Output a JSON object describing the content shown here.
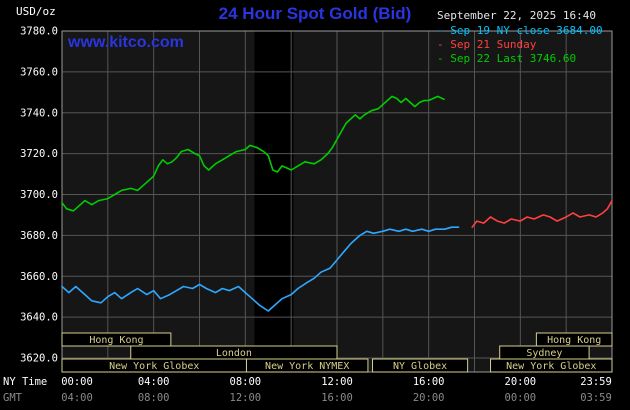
{
  "header": {
    "units_label": "USD/oz",
    "title": "24 Hour Spot Gold (Bid)",
    "datetime": "September 22, 2025 16:40",
    "watermark": "www.kitco.com",
    "accent_blue": "#2a35e0"
  },
  "legend": {
    "dash": "- ",
    "items": [
      {
        "label": "Sep 19 NY close 3684.00",
        "color": "#00c3ff"
      },
      {
        "label": "Sep 21 Sunday",
        "color": "#ff4040"
      },
      {
        "label": "Sep 22 Last 3746.60",
        "color": "#00cc00"
      }
    ]
  },
  "chart_data": {
    "type": "line",
    "title": "24 Hour Spot Gold (Bid)",
    "ylabel": "USD/oz",
    "xlabel": "NY Time / GMT",
    "ylim": [
      3620,
      3780
    ],
    "xlim": [
      0,
      24
    ],
    "grid": true,
    "legend_position": "top-right",
    "y_ticks": [
      {
        "value": 3780,
        "label": "3780.0"
      },
      {
        "value": 3760,
        "label": "3760.0"
      },
      {
        "value": 3740,
        "label": "3740.0"
      },
      {
        "value": 3720,
        "label": "3720.0"
      },
      {
        "value": 3700,
        "label": "3700.0"
      },
      {
        "value": 3680,
        "label": "3680.0"
      },
      {
        "value": 3660,
        "label": "3660.0"
      },
      {
        "value": 3640,
        "label": "3640.0"
      },
      {
        "value": 3620,
        "label": "3620.0"
      }
    ],
    "x_ticks": [
      {
        "hour": 0,
        "ny": "00:00",
        "gmt": "04:00"
      },
      {
        "hour": 4,
        "ny": "04:00",
        "gmt": "08:00"
      },
      {
        "hour": 8,
        "ny": "08:00",
        "gmt": "12:00"
      },
      {
        "hour": 12,
        "ny": "12:00",
        "gmt": "16:00"
      },
      {
        "hour": 16,
        "ny": "16:00",
        "gmt": "20:00"
      },
      {
        "hour": 20,
        "ny": "20:00",
        "gmt": "00:00"
      },
      {
        "hour": 24,
        "ny": "23:59",
        "gmt": "03:59"
      }
    ],
    "x_axis": {
      "ny_label": "NY Time",
      "gmt_label": "GMT"
    },
    "series": [
      {
        "name": "Sep 19 NY close 3684.00",
        "color": "#2ea8ff",
        "points": [
          [
            0,
            3655
          ],
          [
            0.3,
            3652
          ],
          [
            0.6,
            3655
          ],
          [
            1,
            3651
          ],
          [
            1.3,
            3648
          ],
          [
            1.7,
            3647
          ],
          [
            2,
            3650
          ],
          [
            2.3,
            3652
          ],
          [
            2.6,
            3649
          ],
          [
            3,
            3652
          ],
          [
            3.3,
            3654
          ],
          [
            3.7,
            3651
          ],
          [
            4,
            3653
          ],
          [
            4.3,
            3649
          ],
          [
            4.7,
            3651
          ],
          [
            5,
            3653
          ],
          [
            5.3,
            3655
          ],
          [
            5.7,
            3654
          ],
          [
            6,
            3656
          ],
          [
            6.3,
            3654
          ],
          [
            6.7,
            3652
          ],
          [
            7,
            3654
          ],
          [
            7.3,
            3653
          ],
          [
            7.7,
            3655
          ],
          [
            8,
            3652
          ],
          [
            8.3,
            3649
          ],
          [
            8.6,
            3646
          ],
          [
            9,
            3643
          ],
          [
            9.3,
            3646
          ],
          [
            9.6,
            3649
          ],
          [
            10,
            3651
          ],
          [
            10.3,
            3654
          ],
          [
            10.7,
            3657
          ],
          [
            11,
            3659
          ],
          [
            11.3,
            3662
          ],
          [
            11.7,
            3664
          ],
          [
            12,
            3668
          ],
          [
            12.3,
            3672
          ],
          [
            12.6,
            3676
          ],
          [
            13,
            3680
          ],
          [
            13.3,
            3682
          ],
          [
            13.6,
            3681
          ],
          [
            14,
            3682
          ],
          [
            14.3,
            3683
          ],
          [
            14.7,
            3682
          ],
          [
            15,
            3683
          ],
          [
            15.3,
            3682
          ],
          [
            15.7,
            3683
          ],
          [
            16,
            3682
          ],
          [
            16.3,
            3683
          ],
          [
            16.7,
            3683
          ],
          [
            17,
            3684
          ],
          [
            17.3,
            3684
          ]
        ]
      },
      {
        "name": "Sep 21 Sunday",
        "color": "#ff4040",
        "points": [
          [
            17.9,
            3684
          ],
          [
            18.1,
            3687
          ],
          [
            18.4,
            3686
          ],
          [
            18.7,
            3689
          ],
          [
            19,
            3687
          ],
          [
            19.3,
            3686
          ],
          [
            19.6,
            3688
          ],
          [
            20,
            3687
          ],
          [
            20.3,
            3689
          ],
          [
            20.6,
            3688
          ],
          [
            21,
            3690
          ],
          [
            21.3,
            3689
          ],
          [
            21.6,
            3687
          ],
          [
            22,
            3689
          ],
          [
            22.3,
            3691
          ],
          [
            22.6,
            3689
          ],
          [
            23,
            3690
          ],
          [
            23.3,
            3689
          ],
          [
            23.6,
            3691
          ],
          [
            23.8,
            3693
          ],
          [
            24,
            3697
          ]
        ]
      },
      {
        "name": "Sep 22 Last 3746.60",
        "color": "#00cc00",
        "points": [
          [
            0,
            3696
          ],
          [
            0.2,
            3693
          ],
          [
            0.5,
            3692
          ],
          [
            0.8,
            3695
          ],
          [
            1,
            3697
          ],
          [
            1.3,
            3695
          ],
          [
            1.6,
            3697
          ],
          [
            2,
            3698
          ],
          [
            2.3,
            3700
          ],
          [
            2.6,
            3702
          ],
          [
            3,
            3703
          ],
          [
            3.3,
            3702
          ],
          [
            3.6,
            3705
          ],
          [
            4,
            3709
          ],
          [
            4.2,
            3714
          ],
          [
            4.4,
            3717
          ],
          [
            4.6,
            3715
          ],
          [
            4.8,
            3716
          ],
          [
            5,
            3718
          ],
          [
            5.2,
            3721
          ],
          [
            5.5,
            3722
          ],
          [
            5.8,
            3720
          ],
          [
            6,
            3719
          ],
          [
            6.2,
            3714
          ],
          [
            6.4,
            3712
          ],
          [
            6.7,
            3715
          ],
          [
            7,
            3717
          ],
          [
            7.3,
            3719
          ],
          [
            7.6,
            3721
          ],
          [
            8,
            3722
          ],
          [
            8.2,
            3724
          ],
          [
            8.5,
            3723
          ],
          [
            8.8,
            3721
          ],
          [
            9,
            3719
          ],
          [
            9.2,
            3712
          ],
          [
            9.4,
            3711
          ],
          [
            9.6,
            3714
          ],
          [
            9.8,
            3713
          ],
          [
            10,
            3712
          ],
          [
            10.3,
            3714
          ],
          [
            10.6,
            3716
          ],
          [
            11,
            3715
          ],
          [
            11.3,
            3717
          ],
          [
            11.6,
            3720
          ],
          [
            11.8,
            3723
          ],
          [
            12,
            3727
          ],
          [
            12.2,
            3731
          ],
          [
            12.4,
            3735
          ],
          [
            12.6,
            3737
          ],
          [
            12.8,
            3739
          ],
          [
            13,
            3737
          ],
          [
            13.2,
            3739
          ],
          [
            13.5,
            3741
          ],
          [
            13.8,
            3742
          ],
          [
            14,
            3744
          ],
          [
            14.2,
            3746
          ],
          [
            14.4,
            3748
          ],
          [
            14.6,
            3747
          ],
          [
            14.8,
            3745
          ],
          [
            15,
            3747
          ],
          [
            15.2,
            3745
          ],
          [
            15.4,
            3743
          ],
          [
            15.6,
            3745
          ],
          [
            15.8,
            3746
          ],
          [
            16,
            3746
          ],
          [
            16.2,
            3747
          ],
          [
            16.4,
            3748
          ],
          [
            16.67,
            3746.6
          ]
        ]
      }
    ],
    "sessions": [
      {
        "row": 0,
        "label": "Hong Kong",
        "start": 0,
        "end": 4.75
      },
      {
        "row": 0,
        "label": "Hong Kong",
        "start": 20.7,
        "end": 24
      },
      {
        "row": 1,
        "label": "London",
        "start": 3,
        "end": 12
      },
      {
        "row": 1,
        "label": "Sydney",
        "start": 19.1,
        "end": 23
      },
      {
        "row": 2,
        "label": "New York Globex",
        "start": 0,
        "end": 8.05
      },
      {
        "row": 2,
        "label": "New York NYMEX",
        "start": 8.05,
        "end": 13.35
      },
      {
        "row": 2,
        "label": "NY Globex",
        "start": 13.55,
        "end": 17.7
      },
      {
        "row": 2,
        "label": "New York Globex",
        "start": 18.7,
        "end": 24
      }
    ],
    "shading": [
      {
        "start": 8.4,
        "end": 10.1,
        "color": "#000000"
      }
    ],
    "colors": {
      "plot_bg": "#161616",
      "grid": "#555555",
      "border": "#9a9a9a",
      "session_fill": "#000000",
      "session_border": "#d6cf8d",
      "session_text": "#d6cf8d",
      "tick_text": "#ffffff",
      "tick_text_gmt": "#8a8a8a"
    }
  }
}
